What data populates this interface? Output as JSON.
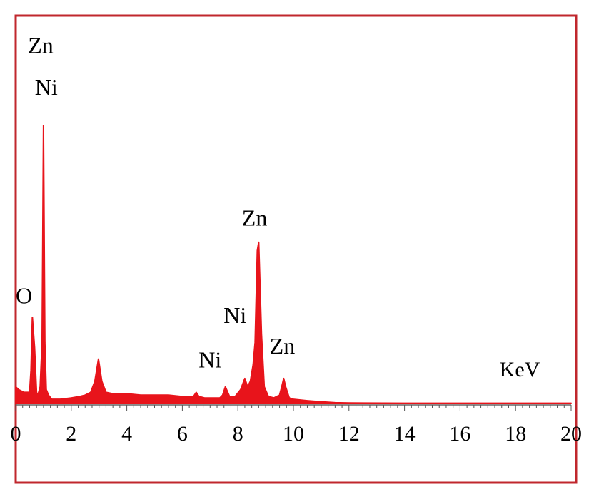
{
  "chart_data": {
    "type": "line",
    "title": "",
    "xlabel": "KeV",
    "ylabel": "",
    "xlim": [
      0,
      20
    ],
    "ylim": [
      0,
      100
    ],
    "x_ticks": [
      "0",
      "2",
      "4",
      "6",
      "8",
      "10",
      "12",
      "14",
      "16",
      "18",
      "20"
    ],
    "grid": false,
    "legend": "none",
    "colors": {
      "spectrum": "#e8141b",
      "frame": "#c0272d",
      "baseline": "#666666"
    },
    "series": [
      {
        "x": [
          0,
          0.1,
          0.3,
          0.5,
          0.55,
          0.6,
          0.68,
          0.75,
          0.8,
          0.88,
          0.95,
          1.0,
          1.05,
          1.1,
          1.18,
          1.3,
          1.6,
          2.0,
          2.3,
          2.5,
          2.7,
          2.85,
          2.98,
          3.1,
          3.25,
          3.5,
          4.0,
          4.5,
          5.0,
          5.5,
          6.0,
          6.4,
          6.5,
          6.6,
          6.8,
          7.2,
          7.35,
          7.45,
          7.55,
          7.7,
          7.9,
          8.1,
          8.25,
          8.35,
          8.45,
          8.55,
          8.62,
          8.7,
          8.75,
          8.85,
          8.95,
          9.1,
          9.3,
          9.5,
          9.58,
          9.65,
          9.72,
          9.85,
          10.0,
          10.5,
          11.0,
          11.5,
          12.0,
          14.0,
          16.0,
          18.0,
          20.0
        ],
        "y": [
          6,
          5,
          4,
          4,
          12,
          31,
          20,
          4,
          3,
          6,
          22,
          100,
          22,
          5,
          3,
          1.5,
          1.5,
          2,
          2.5,
          3,
          4,
          8,
          16,
          8,
          4,
          3.5,
          3.5,
          3,
          3,
          3,
          2.5,
          2.5,
          4,
          2.5,
          2,
          2,
          2,
          3,
          6,
          2.5,
          2.5,
          5,
          9,
          6,
          8,
          14,
          22,
          55,
          58,
          25,
          6,
          2.5,
          2,
          3,
          6,
          9,
          6,
          2,
          1.5,
          1,
          0.6,
          0.3,
          0.2,
          0.1,
          0.1,
          0.1,
          0.1
        ]
      }
    ],
    "annotations": [
      {
        "text": "Zn",
        "x": 0.9,
        "y": 126
      },
      {
        "text": "Ni",
        "x": 1.1,
        "y": 111
      },
      {
        "text": "O",
        "x": 0.3,
        "y": 36
      },
      {
        "text": "Zn",
        "x": 8.6,
        "y": 64
      },
      {
        "text": "Ni",
        "x": 7.9,
        "y": 29
      },
      {
        "text": "Ni",
        "x": 7.0,
        "y": 13
      },
      {
        "text": "Zn",
        "x": 9.6,
        "y": 18
      }
    ]
  }
}
